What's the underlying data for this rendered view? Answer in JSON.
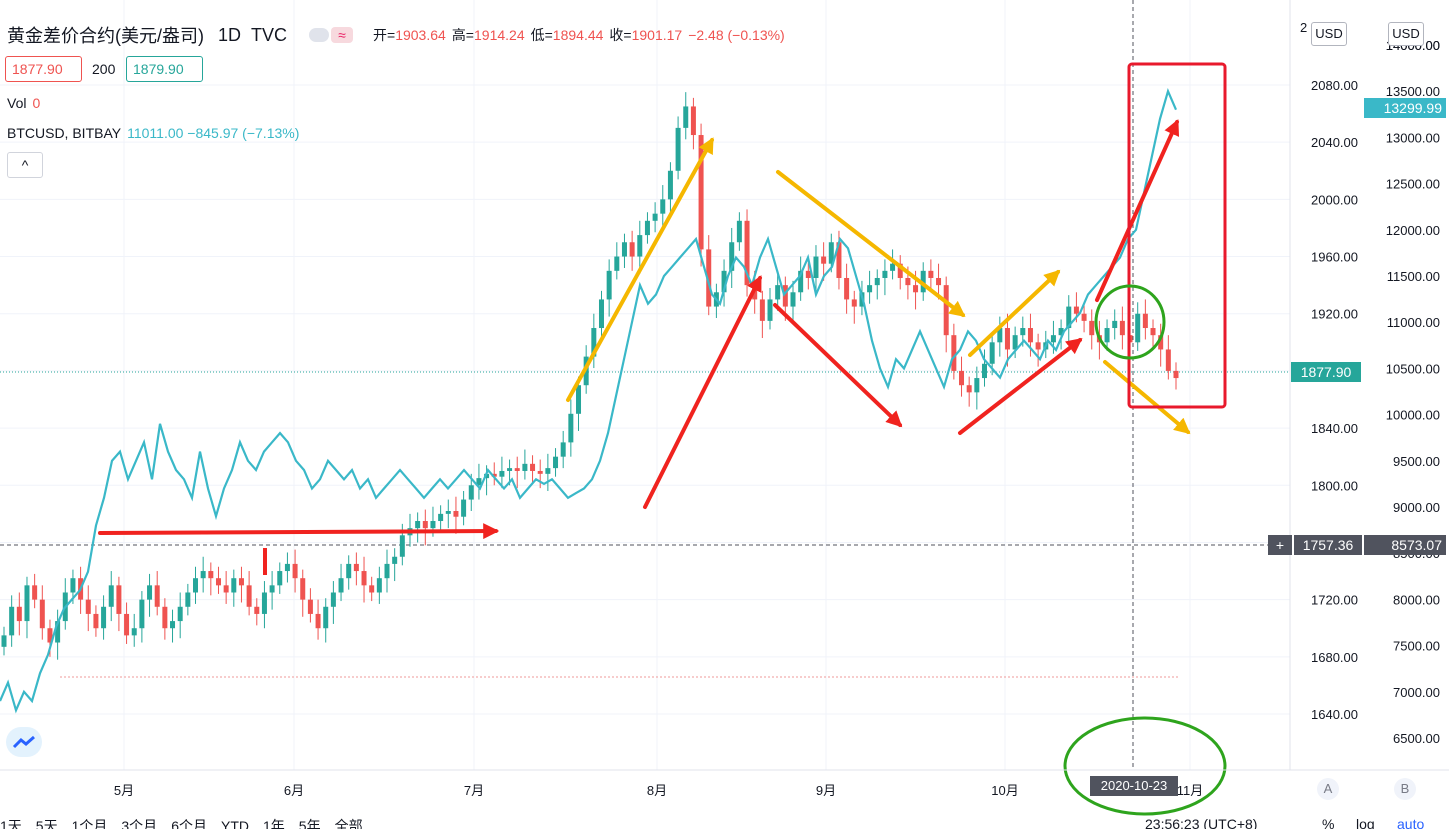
{
  "header": {
    "symbol": "黄金差价合约(美元/盎司)",
    "interval": "1D",
    "source": "TVC",
    "ohlc": [
      {
        "k": "开=",
        "v": "1903.64"
      },
      {
        "k": "高=",
        "v": "1914.24"
      },
      {
        "k": "低=",
        "v": "1894.44"
      },
      {
        "k": "收=",
        "v": "1901.17"
      },
      {
        "k": "",
        "v": "−2.48 (−0.13%)"
      }
    ],
    "bid": "1877.90",
    "spread": "200",
    "ask": "1879.90",
    "vol_label": "Vol",
    "vol_value": "0",
    "compare_symbol": "BTCUSD, BITBAY",
    "compare_value": "11011.00 −845.97 (−7.13%)",
    "collapse_icon": "^"
  },
  "currency_label": "USD",
  "price_labels": {
    "gold_last": "1877.90",
    "btc_last": "13299.99",
    "crosshair_gold": "1757.36",
    "crosshair_btc": "8573.07",
    "crosshair_date": "2020-10-23",
    "gold_top_partial": "2",
    "btc_top_partial": "14000.00"
  },
  "axis_buttons": {
    "left": "A",
    "right": "B"
  },
  "bottom_bar": {
    "ranges": [
      "1天",
      "5天",
      "1个月",
      "3个月",
      "6个月",
      "YTD",
      "1年",
      "5年",
      "全部"
    ],
    "time": "23:56:23 (UTC+8)",
    "percent": "%",
    "log": "log",
    "auto": "auto"
  },
  "colors": {
    "up": "#26a69a",
    "down": "#ef5350",
    "btc_line": "#3ab8c8",
    "arrow_red": "#f0231f",
    "arrow_yellow": "#f5b700",
    "box_red": "#e8192c",
    "circle_green": "#2ea41d",
    "axis_label_dark": "#50535e"
  },
  "chart_data": [
    {
      "type": "candlestick",
      "name": "黄金差价合约(美元/盎司)",
      "x_ticks": [
        "5月",
        "6月",
        "7月",
        "8月",
        "9月",
        "10月",
        "11月"
      ],
      "y_ticks": [
        1640,
        1680,
        1720,
        1760,
        1800,
        1840,
        1880,
        1920,
        1960,
        2000,
        2040,
        2080
      ],
      "ylim": [
        1608,
        2116
      ],
      "approx_series": [
        1695,
        1715,
        1705,
        1730,
        1720,
        1700,
        1690,
        1705,
        1725,
        1735,
        1720,
        1710,
        1700,
        1715,
        1730,
        1710,
        1695,
        1700,
        1720,
        1730,
        1715,
        1700,
        1705,
        1715,
        1725,
        1735,
        1740,
        1735,
        1730,
        1725,
        1735,
        1730,
        1715,
        1710,
        1725,
        1730,
        1740,
        1745,
        1735,
        1720,
        1710,
        1700,
        1715,
        1725,
        1735,
        1745,
        1740,
        1730,
        1725,
        1735,
        1745,
        1750,
        1765,
        1770,
        1775,
        1770,
        1775,
        1780,
        1782,
        1778,
        1790,
        1800,
        1805,
        1808,
        1806,
        1810,
        1812,
        1810,
        1815,
        1810,
        1808,
        1812,
        1820,
        1830,
        1850,
        1870,
        1890,
        1910,
        1930,
        1950,
        1960,
        1970,
        1960,
        1975,
        1985,
        1990,
        2000,
        2020,
        2050,
        2065,
        2045,
        1965,
        1925,
        1935,
        1950,
        1970,
        1985,
        1940,
        1930,
        1915,
        1930,
        1940,
        1925,
        1935,
        1950,
        1945,
        1960,
        1955,
        1970,
        1945,
        1930,
        1925,
        1935,
        1940,
        1945,
        1950,
        1955,
        1945,
        1940,
        1935,
        1950,
        1945,
        1940,
        1905,
        1880,
        1870,
        1865,
        1875,
        1885,
        1900,
        1910,
        1895,
        1905,
        1910,
        1900,
        1895,
        1900,
        1905,
        1910,
        1925,
        1920,
        1915,
        1905,
        1900,
        1910,
        1915,
        1905,
        1900,
        1920,
        1910,
        1905,
        1895,
        1880,
        1875
      ]
    },
    {
      "type": "line",
      "name": "BTCUSD, BITBAY",
      "y_ticks": [
        6500,
        7000,
        7500,
        8000,
        8500,
        9000,
        9500,
        10000,
        10500,
        11000,
        11500,
        12000,
        12500,
        13000,
        13500,
        14000
      ],
      "ylim": [
        6100,
        14400
      ],
      "approx_series": [
        6900,
        7100,
        6800,
        7000,
        6900,
        7200,
        7400,
        7700,
        7900,
        8000,
        8100,
        8300,
        8800,
        9100,
        9500,
        9600,
        9300,
        9500,
        9700,
        9300,
        9900,
        9600,
        9400,
        9300,
        9100,
        9600,
        9200,
        8900,
        9200,
        9400,
        9700,
        9500,
        9400,
        9600,
        9700,
        9800,
        9700,
        9500,
        9400,
        9200,
        9300,
        9500,
        9400,
        9300,
        9400,
        9200,
        9300,
        9100,
        9200,
        9300,
        9400,
        9300,
        9200,
        9100,
        9200,
        9300,
        9200,
        9300,
        9400,
        9300,
        9200,
        9400,
        9300,
        9200,
        9300,
        9100,
        9200,
        9300,
        9250,
        9300,
        9200,
        9100,
        9150,
        9200,
        9300,
        9500,
        9800,
        10200,
        10600,
        11000,
        11400,
        11200,
        11300,
        11500,
        11600,
        11700,
        11800,
        11900,
        11600,
        11300,
        11200,
        11500,
        11700,
        11600,
        11400,
        11700,
        11900,
        11600,
        11300,
        11400,
        11500,
        11700,
        11300,
        11500,
        11600,
        11900,
        11800,
        11500,
        11200,
        10800,
        10500,
        10300,
        10600,
        10500,
        10700,
        10900,
        10700,
        10500,
        10300,
        10600,
        10700,
        10900,
        10800,
        10600,
        10500,
        10400,
        10600,
        10700,
        10800,
        10700,
        10600,
        10800,
        10700,
        10900,
        11000,
        11100,
        11300,
        11400,
        11500,
        11600,
        11700,
        11900,
        12000,
        12400,
        12800,
        13200,
        13500,
        13300
      ]
    }
  ]
}
